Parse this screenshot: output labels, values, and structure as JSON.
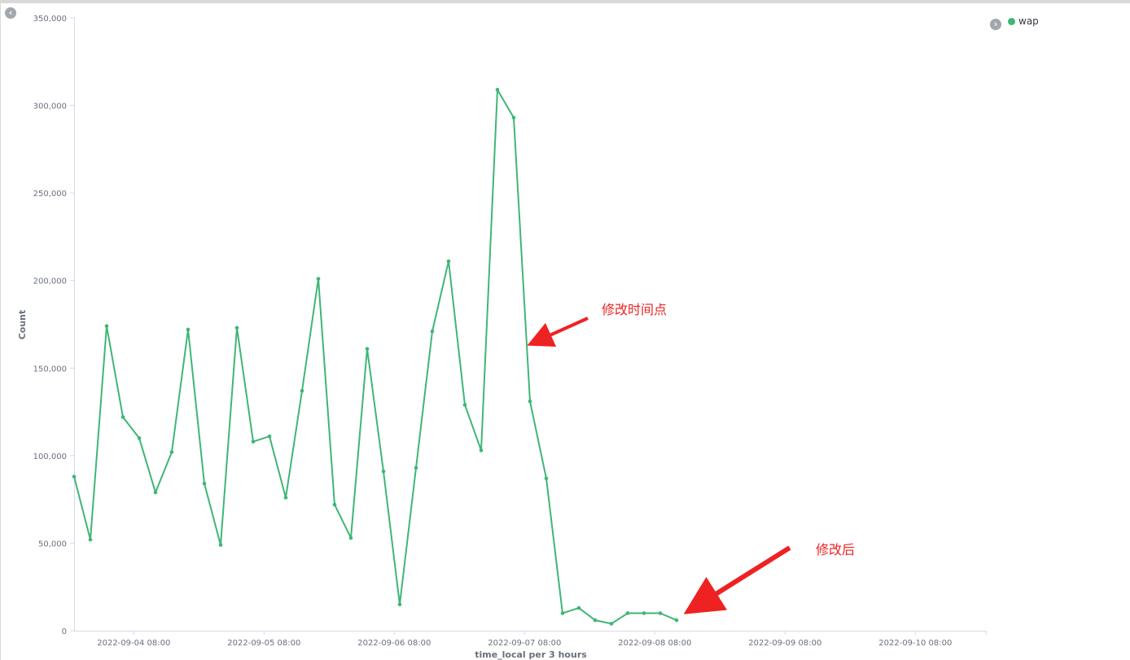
{
  "colors": {
    "series": "#3fb675",
    "annotation": "#ee2222",
    "axis_text": "#69707d"
  },
  "legend": {
    "toggle_left_icon": "chevron-left-icon",
    "toggle_right_icon": "chevron-right-icon"
  },
  "chart_data": {
    "type": "line",
    "title": "",
    "xlabel": "time_local per 3 hours",
    "ylabel": "Count",
    "ylim": [
      0,
      350000
    ],
    "y_ticks": [
      "0",
      "50,000",
      "100,000",
      "150,000",
      "200,000",
      "250,000",
      "300,000",
      "350,000"
    ],
    "y_tick_values": [
      0,
      50000,
      100000,
      150000,
      200000,
      250000,
      300000,
      350000
    ],
    "x_ticks": [
      "2022-09-04 08:00",
      "2022-09-05 08:00",
      "2022-09-06 08:00",
      "2022-09-07 08:00",
      "2022-09-08 08:00",
      "2022-09-09 08:00",
      "2022-09-10 08:00"
    ],
    "x_tick_hours": [
      18,
      42,
      66,
      90,
      114,
      138,
      162
    ],
    "xlim_hours": [
      7,
      175
    ],
    "x_hours_reference": "2022-09-03 14:00",
    "legend": [
      "wap"
    ],
    "legend_position": "top-right",
    "grid": false,
    "series": [
      {
        "name": "wap",
        "x_hours": [
          7,
          10,
          13,
          16,
          19,
          22,
          25,
          28,
          31,
          34,
          37,
          40,
          43,
          46,
          49,
          52,
          55,
          58,
          61,
          64,
          67,
          70,
          73,
          76,
          79,
          82,
          85,
          88,
          91,
          94,
          97,
          100,
          103,
          106,
          109,
          112,
          115,
          118,
          121,
          124
        ],
        "values": [
          88000,
          52000,
          174000,
          122000,
          110000,
          79000,
          102000,
          172000,
          84000,
          49000,
          173000,
          108000,
          111000,
          76000,
          137000,
          201000,
          72000,
          53000,
          161000,
          91000,
          15000,
          93000,
          171000,
          211000,
          129000,
          103000,
          309000,
          293000,
          131000,
          87000,
          10000,
          13000,
          6000,
          4000,
          10000,
          10000,
          10000,
          6000,
          null,
          null
        ]
      }
    ],
    "annotations": [
      {
        "text": "修改时间点"
      },
      {
        "text": "修改后"
      }
    ]
  }
}
